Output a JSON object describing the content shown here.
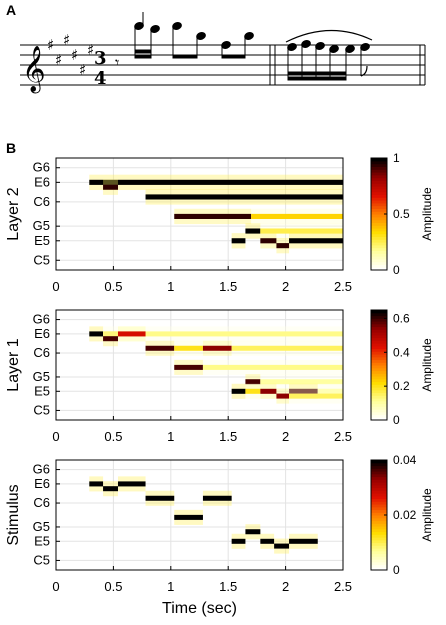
{
  "panels": {
    "a": "A",
    "b": "B"
  },
  "score": {
    "time_signature_top": "3",
    "time_signature_bottom": "4",
    "key_sharps": 6
  },
  "colors": {
    "colormap": [
      "#ffffff",
      "#ffff99",
      "#ffdd00",
      "#ff8000",
      "#e01000",
      "#990000",
      "#000000"
    ],
    "grid": "#e3e3e3"
  },
  "chart_data": [
    {
      "type": "heatmap",
      "ylabel": "Layer 2",
      "xlabel": "",
      "xlim": [
        0,
        2.5
      ],
      "xticks": [
        "0",
        "0.5",
        "1",
        "1.5",
        "2",
        "2.5"
      ],
      "yticks": [
        "G6",
        "E6",
        "C6",
        "G5",
        "E5",
        "C5"
      ],
      "colorbar": {
        "label": "Amplitude",
        "ticks": [
          "0",
          "0.5",
          "1"
        ],
        "range": [
          0,
          1
        ]
      },
      "segments": [
        {
          "note": "E6",
          "start": 0.29,
          "end": 2.5,
          "amp": 1.0
        },
        {
          "note": "D#6",
          "start": 0.41,
          "end": 0.54,
          "amp": 0.95
        },
        {
          "note": "C#6",
          "start": 0.78,
          "end": 2.5,
          "amp": 1.0
        },
        {
          "note": "A5",
          "start": 1.03,
          "end": 1.7,
          "amp": 0.95
        },
        {
          "note": "A5",
          "start": 1.7,
          "end": 2.5,
          "amp": 0.35
        },
        {
          "note": "F#5",
          "start": 1.65,
          "end": 1.78,
          "amp": 1.0
        },
        {
          "note": "F#5",
          "start": 1.78,
          "end": 2.5,
          "amp": 0.25
        },
        {
          "note": "E5",
          "start": 1.53,
          "end": 1.65,
          "amp": 1.0
        },
        {
          "note": "E5",
          "start": 1.78,
          "end": 1.92,
          "amp": 0.95
        },
        {
          "note": "E5",
          "start": 2.03,
          "end": 2.5,
          "amp": 1.0
        },
        {
          "note": "D#5",
          "start": 1.92,
          "end": 2.03,
          "amp": 0.95
        }
      ]
    },
    {
      "type": "heatmap",
      "ylabel": "Layer 1",
      "xlabel": "",
      "xlim": [
        0,
        2.5
      ],
      "xticks": [
        "0",
        "0.5",
        "1",
        "1.5",
        "2",
        "2.5"
      ],
      "yticks": [
        "G6",
        "E6",
        "C6",
        "G5",
        "E5",
        "C5"
      ],
      "colorbar": {
        "label": "Amplitude",
        "ticks": [
          "0",
          "0.2",
          "0.4",
          "0.6"
        ],
        "range": [
          0,
          0.65
        ]
      },
      "segments": [
        {
          "note": "E6",
          "start": 0.29,
          "end": 0.41,
          "amp": 0.65
        },
        {
          "note": "E6",
          "start": 0.41,
          "end": 2.5,
          "amp": 0.12
        },
        {
          "note": "D#6",
          "start": 0.41,
          "end": 0.54,
          "amp": 0.6
        },
        {
          "note": "E6",
          "start": 0.54,
          "end": 0.78,
          "amp": 0.45
        },
        {
          "note": "C#6",
          "start": 0.78,
          "end": 1.03,
          "amp": 0.6
        },
        {
          "note": "C#6",
          "start": 1.03,
          "end": 1.28,
          "amp": 0.2
        },
        {
          "note": "C#6",
          "start": 1.28,
          "end": 1.53,
          "amp": 0.55
        },
        {
          "note": "C#6",
          "start": 1.53,
          "end": 2.5,
          "amp": 0.15
        },
        {
          "note": "A5",
          "start": 1.03,
          "end": 1.28,
          "amp": 0.6
        },
        {
          "note": "A5",
          "start": 1.28,
          "end": 2.5,
          "amp": 0.12
        },
        {
          "note": "F#5",
          "start": 1.65,
          "end": 1.78,
          "amp": 0.6
        },
        {
          "note": "F#5",
          "start": 1.78,
          "end": 2.5,
          "amp": 0.1
        },
        {
          "note": "E5",
          "start": 1.53,
          "end": 1.65,
          "amp": 0.65
        },
        {
          "note": "E5",
          "start": 1.65,
          "end": 1.78,
          "amp": 0.2
        },
        {
          "note": "E5",
          "start": 1.78,
          "end": 1.92,
          "amp": 0.55
        },
        {
          "note": "E5",
          "start": 2.03,
          "end": 2.28,
          "amp": 0.6
        },
        {
          "note": "E5",
          "start": 2.28,
          "end": 2.5,
          "amp": 0.1
        },
        {
          "note": "D#5",
          "start": 1.92,
          "end": 2.03,
          "amp": 0.55
        },
        {
          "note": "D#5",
          "start": 2.03,
          "end": 2.5,
          "amp": 0.15
        }
      ]
    },
    {
      "type": "heatmap",
      "ylabel": "Stimulus",
      "xlabel": "Time (sec)",
      "xlim": [
        0,
        2.5
      ],
      "xticks": [
        "0",
        "0.5",
        "1",
        "1.5",
        "2",
        "2.5"
      ],
      "yticks": [
        "G6",
        "E6",
        "C6",
        "G5",
        "E5",
        "C5"
      ],
      "colorbar": {
        "label": "Amplitude",
        "ticks": [
          "0",
          "0.02",
          "0.04"
        ],
        "range": [
          0,
          0.04
        ]
      },
      "segments": [
        {
          "note": "E6",
          "start": 0.29,
          "end": 0.41,
          "amp": 0.04
        },
        {
          "note": "D#6",
          "start": 0.41,
          "end": 0.54,
          "amp": 0.04
        },
        {
          "note": "E6",
          "start": 0.54,
          "end": 0.78,
          "amp": 0.04
        },
        {
          "note": "C#6",
          "start": 0.78,
          "end": 1.03,
          "amp": 0.04
        },
        {
          "note": "A5",
          "start": 1.03,
          "end": 1.28,
          "amp": 0.04
        },
        {
          "note": "C#6",
          "start": 1.28,
          "end": 1.53,
          "amp": 0.04
        },
        {
          "note": "E5",
          "start": 1.53,
          "end": 1.65,
          "amp": 0.04
        },
        {
          "note": "F#5",
          "start": 1.65,
          "end": 1.78,
          "amp": 0.04
        },
        {
          "note": "E5",
          "start": 1.78,
          "end": 1.9,
          "amp": 0.04
        },
        {
          "note": "D#5",
          "start": 1.9,
          "end": 2.03,
          "amp": 0.04
        },
        {
          "note": "E5",
          "start": 2.03,
          "end": 2.28,
          "amp": 0.04
        }
      ]
    }
  ]
}
